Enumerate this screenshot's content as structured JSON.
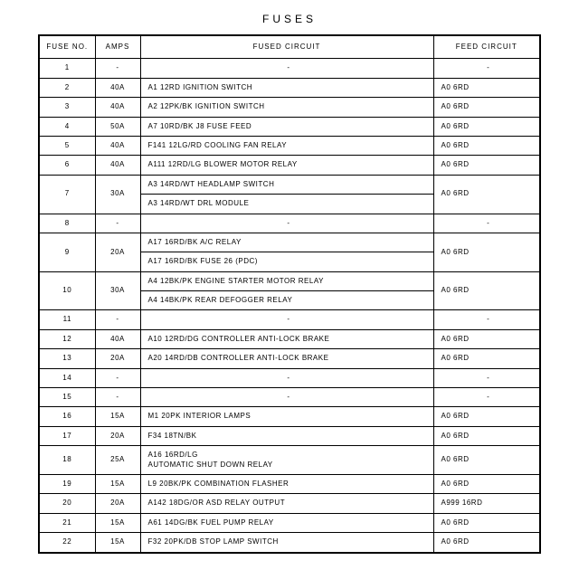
{
  "title": "FUSES",
  "columns": [
    "FUSE NO.",
    "AMPS",
    "FUSED CIRCUIT",
    "FEED CIRCUIT"
  ],
  "rows": [
    {
      "fuse": "1",
      "amps": "-",
      "circuits": [
        "-"
      ],
      "feed": "-"
    },
    {
      "fuse": "2",
      "amps": "40A",
      "circuits": [
        "A1 12RD IGNITION SWITCH"
      ],
      "feed": "A0 6RD"
    },
    {
      "fuse": "3",
      "amps": "40A",
      "circuits": [
        "A2 12PK/BK IGNITION SWITCH"
      ],
      "feed": "A0 6RD"
    },
    {
      "fuse": "4",
      "amps": "50A",
      "circuits": [
        "A7 10RD/BK J8 FUSE FEED"
      ],
      "feed": "A0 6RD"
    },
    {
      "fuse": "5",
      "amps": "40A",
      "circuits": [
        "F141 12LG/RD COOLING FAN RELAY"
      ],
      "feed": "A0 6RD"
    },
    {
      "fuse": "6",
      "amps": "40A",
      "circuits": [
        "A111 12RD/LG BLOWER MOTOR RELAY"
      ],
      "feed": "A0 6RD"
    },
    {
      "fuse": "7",
      "amps": "30A",
      "circuits": [
        "A3 14RD/WT HEADLAMP SWITCH",
        "A3 14RD/WT DRL MODULE"
      ],
      "feed": "A0 6RD"
    },
    {
      "fuse": "8",
      "amps": "-",
      "circuits": [
        "-"
      ],
      "feed": "-"
    },
    {
      "fuse": "9",
      "amps": "20A",
      "circuits": [
        "A17 16RD/BK A/C RELAY",
        "A17 16RD/BK FUSE 26 (PDC)"
      ],
      "feed": "A0 6RD"
    },
    {
      "fuse": "10",
      "amps": "30A",
      "circuits": [
        "A4 12BK/PK ENGINE STARTER MOTOR RELAY",
        "A4 14BK/PK REAR DEFOGGER RELAY"
      ],
      "feed": "A0 6RD"
    },
    {
      "fuse": "11",
      "amps": "-",
      "circuits": [
        "-"
      ],
      "feed": "-"
    },
    {
      "fuse": "12",
      "amps": "40A",
      "circuits": [
        "A10 12RD/DG CONTROLLER ANTI-LOCK BRAKE"
      ],
      "feed": "A0 6RD"
    },
    {
      "fuse": "13",
      "amps": "20A",
      "circuits": [
        "A20 14RD/DB CONTROLLER ANTI-LOCK BRAKE"
      ],
      "feed": "A0 6RD"
    },
    {
      "fuse": "14",
      "amps": "-",
      "circuits": [
        "-"
      ],
      "feed": "-"
    },
    {
      "fuse": "15",
      "amps": "-",
      "circuits": [
        "-"
      ],
      "feed": "-"
    },
    {
      "fuse": "16",
      "amps": "15A",
      "circuits": [
        "M1 20PK INTERIOR LAMPS"
      ],
      "feed": "A0 6RD"
    },
    {
      "fuse": "17",
      "amps": "20A",
      "circuits": [
        "F34 18TN/BK"
      ],
      "feed": "A0 6RD"
    },
    {
      "fuse": "18",
      "amps": "25A",
      "circuits": [
        "A16 16RD/LG\nAUTOMATIC SHUT DOWN RELAY"
      ],
      "feed": "A0 6RD"
    },
    {
      "fuse": "19",
      "amps": "15A",
      "circuits": [
        "L9 20BK/PK COMBINATION FLASHER"
      ],
      "feed": "A0 6RD"
    },
    {
      "fuse": "20",
      "amps": "20A",
      "circuits": [
        "A142 18DG/OR ASD RELAY OUTPUT"
      ],
      "feed": "A999 16RD"
    },
    {
      "fuse": "21",
      "amps": "15A",
      "circuits": [
        "A61 14DG/BK FUEL PUMP RELAY"
      ],
      "feed": "A0 6RD"
    },
    {
      "fuse": "22",
      "amps": "15A",
      "circuits": [
        "F32 20PK/DB STOP LAMP SWITCH"
      ],
      "feed": "A0 6RD"
    }
  ]
}
